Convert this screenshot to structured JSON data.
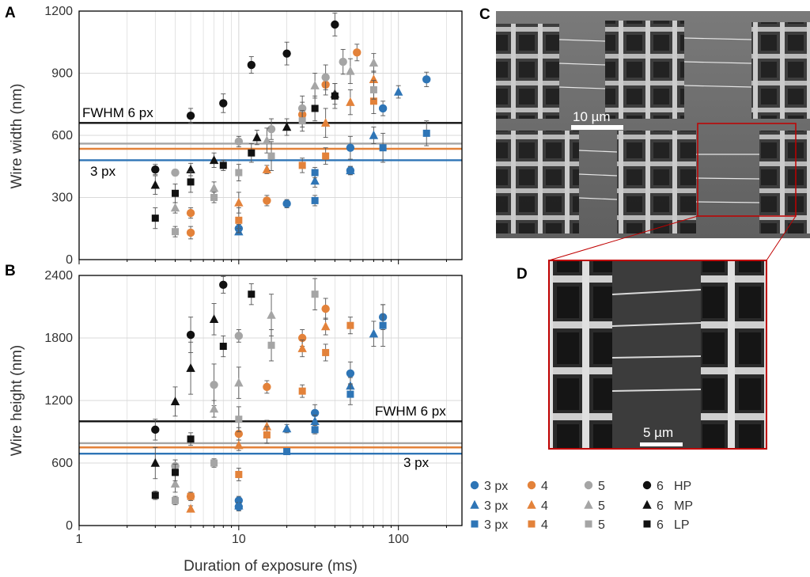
{
  "colors": {
    "hp": "#111111",
    "px3": "#2e75b6",
    "px4": "#e3823a",
    "px5": "#a5a5a5",
    "grid": "#d9d9d9",
    "frame": "#c00000"
  },
  "chart_data": [
    {
      "type": "scatter",
      "panel_label": "A",
      "ylabel": "Wire width (nm)",
      "xlabel": "",
      "xscale": "log",
      "xlim": [
        1,
        250
      ],
      "ylim": [
        0,
        1200
      ],
      "x_ticks": [
        "1",
        "10",
        "100"
      ],
      "y_ticks": [
        "0",
        "300",
        "600",
        "900",
        "1200"
      ],
      "grid": true,
      "hlines": [
        {
          "y": 660,
          "color": "#111111",
          "label": "FWHM 6 px"
        },
        {
          "y": 560,
          "color": "#a5a5a5",
          "label": ""
        },
        {
          "y": 535,
          "color": "#e3823a",
          "label": ""
        },
        {
          "y": 480,
          "color": "#2e75b6",
          "label": "3 px"
        }
      ],
      "series": [
        {
          "group": "3px",
          "marker": "circle",
          "color": "#2e75b6",
          "points": [
            [
              10,
              150,
              20
            ],
            [
              20,
              270,
              20
            ],
            [
              50,
              430,
              20
            ],
            [
              80,
              730,
              35
            ],
            [
              150,
              870,
              35
            ],
            [
              50,
              540,
              55
            ]
          ]
        },
        {
          "group": "3px",
          "marker": "triangle",
          "color": "#2e75b6",
          "points": [
            [
              10,
              135,
              15
            ],
            [
              30,
              380,
              30
            ],
            [
              50,
              430,
              20
            ],
            [
              70,
              600,
              40
            ],
            [
              100,
              810,
              30
            ]
          ]
        },
        {
          "group": "3px",
          "marker": "square",
          "color": "#2e75b6",
          "points": [
            [
              30,
              285,
              25
            ],
            [
              30,
              420,
              25
            ],
            [
              80,
              540,
              70
            ],
            [
              150,
              610,
              60
            ]
          ]
        },
        {
          "group": "4",
          "marker": "circle",
          "color": "#e3823a",
          "points": [
            [
              5,
              130,
              30
            ],
            [
              5,
              225,
              25
            ],
            [
              15,
              285,
              25
            ],
            [
              25,
              700,
              60
            ],
            [
              35,
              845,
              50
            ],
            [
              55,
              1000,
              40
            ]
          ]
        },
        {
          "group": "4",
          "marker": "triangle",
          "color": "#e3823a",
          "points": [
            [
              10,
              275,
              50
            ],
            [
              15,
              435,
              20
            ],
            [
              35,
              660,
              70
            ],
            [
              50,
              760,
              60
            ],
            [
              70,
              870,
              40
            ]
          ]
        },
        {
          "group": "4",
          "marker": "square",
          "color": "#e3823a",
          "points": [
            [
              10,
              190,
              60
            ],
            [
              25,
              455,
              35
            ],
            [
              35,
              500,
              40
            ],
            [
              70,
              765,
              60
            ]
          ]
        },
        {
          "group": "5",
          "marker": "circle",
          "color": "#a5a5a5",
          "points": [
            [
              4,
              420,
              15
            ],
            [
              10,
              570,
              25
            ],
            [
              16,
              630,
              50
            ],
            [
              25,
              730,
              60
            ],
            [
              35,
              880,
              60
            ],
            [
              45,
              955,
              60
            ]
          ]
        },
        {
          "group": "5",
          "marker": "triangle",
          "color": "#a5a5a5",
          "points": [
            [
              4,
              250,
              25
            ],
            [
              7,
              345,
              30
            ],
            [
              15,
              575,
              60
            ],
            [
              30,
              840,
              60
            ],
            [
              50,
              910,
              60
            ],
            [
              70,
              950,
              45
            ]
          ]
        },
        {
          "group": "5",
          "marker": "square",
          "color": "#a5a5a5",
          "points": [
            [
              4,
              135,
              25
            ],
            [
              7,
              300,
              25
            ],
            [
              10,
              420,
              40
            ],
            [
              16,
              500,
              70
            ],
            [
              25,
              670,
              50
            ],
            [
              70,
              820,
              45
            ]
          ]
        },
        {
          "group": "6",
          "marker": "circle",
          "color": "#111111",
          "points": [
            [
              3,
              435,
              25
            ],
            [
              5,
              695,
              35
            ],
            [
              8,
              755,
              45
            ],
            [
              12,
              940,
              40
            ],
            [
              20,
              995,
              55
            ],
            [
              40,
              1135,
              55
            ]
          ]
        },
        {
          "group": "6",
          "marker": "triangle",
          "color": "#111111",
          "points": [
            [
              3,
              360,
              45
            ],
            [
              5,
              435,
              30
            ],
            [
              7,
              480,
              35
            ],
            [
              13,
              590,
              35
            ],
            [
              20,
              640,
              40
            ],
            [
              40,
              800,
              50
            ]
          ]
        },
        {
          "group": "6",
          "marker": "square",
          "color": "#111111",
          "points": [
            [
              3,
              200,
              50
            ],
            [
              4,
              320,
              45
            ],
            [
              5,
              375,
              50
            ],
            [
              8,
              455,
              25
            ],
            [
              12,
              515,
              45
            ],
            [
              30,
              730,
              60
            ],
            [
              40,
              790,
              60
            ]
          ]
        }
      ]
    },
    {
      "type": "scatter",
      "panel_label": "B",
      "ylabel": "Wire height (nm)",
      "xlabel": "Duration of exposure (ms)",
      "xscale": "log",
      "xlim": [
        1,
        250
      ],
      "ylim": [
        0,
        2400
      ],
      "x_ticks": [
        "1",
        "10",
        "100"
      ],
      "y_ticks": [
        "0",
        "600",
        "1200",
        "1800",
        "2400"
      ],
      "grid": true,
      "hlines": [
        {
          "y": 1000,
          "color": "#111111",
          "label": "FWHM 6 px"
        },
        {
          "y": 790,
          "color": "#a5a5a5",
          "label": ""
        },
        {
          "y": 750,
          "color": "#e3823a",
          "label": ""
        },
        {
          "y": 690,
          "color": "#2e75b6",
          "label": "3 px"
        }
      ],
      "series": [
        {
          "group": "3px",
          "marker": "circle",
          "color": "#2e75b6",
          "points": [
            [
              10,
              240,
              40
            ],
            [
              10,
              180,
              40
            ],
            [
              30,
              1080,
              80
            ],
            [
              50,
              1460,
              110
            ],
            [
              80,
              2000,
              120
            ]
          ]
        },
        {
          "group": "3px",
          "marker": "triangle",
          "color": "#2e75b6",
          "points": [
            [
              10,
              190,
              30
            ],
            [
              20,
              930,
              40
            ],
            [
              30,
              1000,
              60
            ],
            [
              50,
              1340,
              80
            ],
            [
              70,
              1840,
              120
            ]
          ]
        },
        {
          "group": "3px",
          "marker": "square",
          "color": "#2e75b6",
          "points": [
            [
              20,
              710,
              30
            ],
            [
              30,
              920,
              40
            ],
            [
              50,
              1260,
              100
            ],
            [
              80,
              1920,
              200
            ]
          ]
        },
        {
          "group": "4",
          "marker": "circle",
          "color": "#e3823a",
          "points": [
            [
              5,
              280,
              30
            ],
            [
              10,
              880,
              60
            ],
            [
              15,
              1330,
              60
            ],
            [
              25,
              1800,
              80
            ],
            [
              35,
              2080,
              100
            ]
          ]
        },
        {
          "group": "4",
          "marker": "triangle",
          "color": "#e3823a",
          "points": [
            [
              5,
              160,
              30
            ],
            [
              10,
              770,
              50
            ],
            [
              15,
              950,
              60
            ],
            [
              25,
              1700,
              80
            ],
            [
              35,
              1910,
              80
            ]
          ]
        },
        {
          "group": "4",
          "marker": "square",
          "color": "#e3823a",
          "points": [
            [
              5,
              280,
              40
            ],
            [
              10,
              490,
              60
            ],
            [
              15,
              870,
              80
            ],
            [
              25,
              1290,
              60
            ],
            [
              35,
              1660,
              80
            ],
            [
              50,
              1920,
              80
            ]
          ]
        },
        {
          "group": "5",
          "marker": "circle",
          "color": "#a5a5a5",
          "points": [
            [
              4,
              570,
              60
            ],
            [
              7,
              1350,
              200
            ],
            [
              10,
              1820,
              60
            ]
          ]
        },
        {
          "group": "5",
          "marker": "triangle",
          "color": "#a5a5a5",
          "points": [
            [
              4,
              400,
              80
            ],
            [
              7,
              1120,
              80
            ],
            [
              10,
              1370,
              150
            ],
            [
              16,
              2020,
              200
            ]
          ]
        },
        {
          "group": "5",
          "marker": "square",
          "color": "#a5a5a5",
          "points": [
            [
              4,
              240,
              40
            ],
            [
              7,
              600,
              40
            ],
            [
              10,
              1020,
              120
            ],
            [
              16,
              1730,
              150
            ],
            [
              30,
              2220,
              150
            ]
          ]
        },
        {
          "group": "6",
          "marker": "circle",
          "color": "#111111",
          "points": [
            [
              3,
              920,
              100
            ],
            [
              5,
              1830,
              170
            ],
            [
              8,
              2310,
              80
            ]
          ]
        },
        {
          "group": "6",
          "marker": "triangle",
          "color": "#111111",
          "points": [
            [
              3,
              600,
              150
            ],
            [
              4,
              1190,
              140
            ],
            [
              5,
              1510,
              250
            ],
            [
              7,
              1980,
              150
            ]
          ]
        },
        {
          "group": "6",
          "marker": "square",
          "color": "#111111",
          "points": [
            [
              3,
              290,
              40
            ],
            [
              4,
              510,
              80
            ],
            [
              5,
              830,
              60
            ],
            [
              8,
              1720,
              100
            ],
            [
              12,
              2220,
              100
            ]
          ]
        }
      ]
    }
  ],
  "images": {
    "panel_c": {
      "label": "C",
      "scale_bar": "10 µm"
    },
    "panel_d": {
      "label": "D",
      "scale_bar": "5 µm"
    }
  },
  "legend": {
    "rows": [
      [
        {
          "marker": "circle",
          "color": "#2e75b6",
          "text": "3 px"
        },
        {
          "marker": "circle",
          "color": "#e3823a",
          "text": "4"
        },
        {
          "marker": "circle",
          "color": "#a5a5a5",
          "text": "5"
        },
        {
          "marker": "circle",
          "color": "#111111",
          "text": "6",
          "suffix": "HP"
        }
      ],
      [
        {
          "marker": "triangle",
          "color": "#2e75b6",
          "text": "3 px"
        },
        {
          "marker": "triangle",
          "color": "#e3823a",
          "text": "4"
        },
        {
          "marker": "triangle",
          "color": "#a5a5a5",
          "text": "5"
        },
        {
          "marker": "triangle",
          "color": "#111111",
          "text": "6",
          "suffix": "MP"
        }
      ],
      [
        {
          "marker": "square",
          "color": "#2e75b6",
          "text": "3 px"
        },
        {
          "marker": "square",
          "color": "#e3823a",
          "text": "4"
        },
        {
          "marker": "square",
          "color": "#a5a5a5",
          "text": "5"
        },
        {
          "marker": "square",
          "color": "#111111",
          "text": "6",
          "suffix": "LP"
        }
      ]
    ]
  }
}
